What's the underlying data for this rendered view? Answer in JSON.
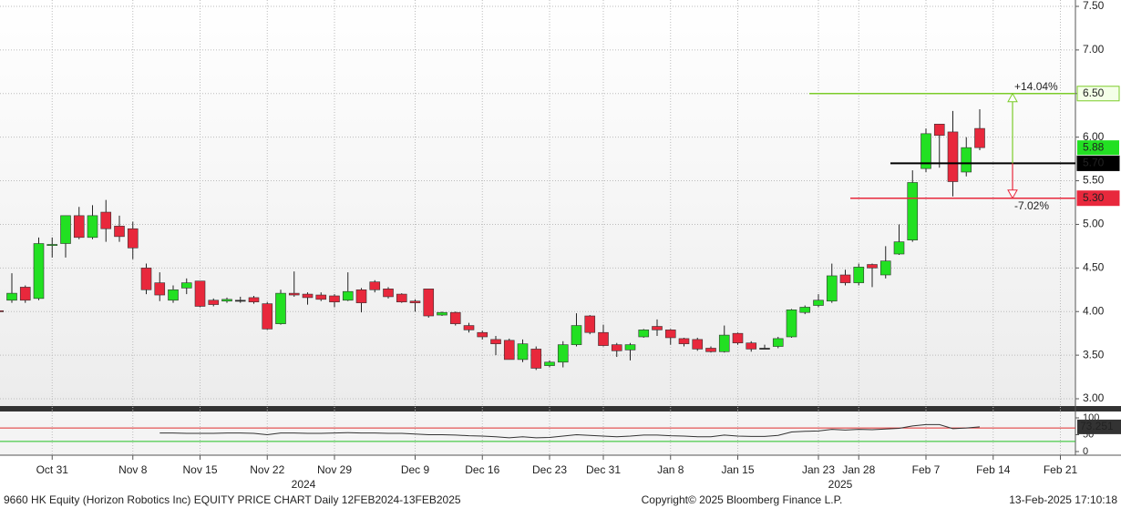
{
  "chart_data": [
    {
      "type": "candlestick",
      "categories": [
        null,
        null,
        null,
        null,
        "Oct 31",
        null,
        null,
        null,
        null,
        null,
        "Nov 8",
        null,
        null,
        null,
        null,
        "Nov 15",
        null,
        null,
        null,
        null,
        "Nov 22",
        null,
        null,
        null,
        null,
        "Nov 29",
        null,
        null,
        null,
        null,
        null,
        "Dec 9",
        null,
        null,
        null,
        null,
        "Dec 16",
        null,
        null,
        null,
        null,
        "Dec 23",
        null,
        null,
        null,
        "Dec 31",
        null,
        null,
        null,
        null,
        "Jan 8",
        null,
        null,
        null,
        null,
        "Jan 15",
        null,
        null,
        null,
        null,
        null,
        "Jan 23",
        null,
        null,
        "Jan 28",
        null,
        null,
        null,
        null,
        "Feb 7",
        null,
        null,
        null,
        null,
        "Feb 14",
        null,
        null,
        null,
        null,
        "Feb 21"
      ],
      "open": [
        4.01,
        4.13,
        4.28,
        4.15,
        4.76,
        4.78,
        5.1,
        4.85,
        5.14,
        4.98,
        4.95,
        4.5,
        4.33,
        4.13,
        4.27,
        4.35,
        4.13,
        4.12,
        4.13,
        4.16,
        4.09,
        3.86,
        4.21,
        4.2,
        4.19,
        4.18,
        4.13,
        4.25,
        4.34,
        4.26,
        4.2,
        4.12,
        4.26,
        3.96,
        3.99,
        3.84,
        3.76,
        3.68,
        3.67,
        3.45,
        3.57,
        3.38,
        3.42,
        3.62,
        3.95,
        3.76,
        3.62,
        3.56,
        3.71,
        3.83,
        3.79,
        3.69,
        3.68,
        3.58,
        3.54,
        3.75,
        3.64,
        3.58,
        3.6,
        3.71,
        3.99,
        4.07,
        4.12,
        4.42,
        4.33,
        4.54,
        4.42,
        4.66,
        4.82,
        5.64,
        6.15,
        6.06,
        5.6,
        6.1,
        null,
        null,
        null,
        null,
        null,
        null
      ],
      "high": [
        4.01,
        4.44,
        4.3,
        4.85,
        4.85,
        5.1,
        5.2,
        5.22,
        5.28,
        5.1,
        5.03,
        4.55,
        4.45,
        4.3,
        4.38,
        4.35,
        4.15,
        4.16,
        4.17,
        4.18,
        4.11,
        4.25,
        4.46,
        4.22,
        4.22,
        4.2,
        4.45,
        4.27,
        4.36,
        4.28,
        4.21,
        4.14,
        4.26,
        4.0,
        4.0,
        3.87,
        3.78,
        3.72,
        3.69,
        3.68,
        3.6,
        3.44,
        3.66,
        3.98,
        3.96,
        3.85,
        3.64,
        3.64,
        3.8,
        3.91,
        3.8,
        3.7,
        3.7,
        3.6,
        3.84,
        3.76,
        3.66,
        3.62,
        3.71,
        4.03,
        4.07,
        4.2,
        4.55,
        4.48,
        4.55,
        4.55,
        4.75,
        5.0,
        5.62,
        6.1,
        6.15,
        6.3,
        6.0,
        6.32,
        null,
        null,
        null,
        null,
        null,
        null
      ],
      "low": [
        3.99,
        4.1,
        4.1,
        4.13,
        4.62,
        4.62,
        4.83,
        4.83,
        4.8,
        4.8,
        4.6,
        4.2,
        4.12,
        4.1,
        4.2,
        4.05,
        4.06,
        4.1,
        4.1,
        4.09,
        3.79,
        3.85,
        4.17,
        4.08,
        4.12,
        4.05,
        4.12,
        3.99,
        4.22,
        4.15,
        4.1,
        4.0,
        3.93,
        3.95,
        3.84,
        3.76,
        3.68,
        3.5,
        3.45,
        3.42,
        3.33,
        3.36,
        3.36,
        3.6,
        3.74,
        3.6,
        3.48,
        3.44,
        3.7,
        3.72,
        3.62,
        3.6,
        3.55,
        3.53,
        3.53,
        3.62,
        3.54,
        3.57,
        3.58,
        3.7,
        3.97,
        4.05,
        4.1,
        4.3,
        4.3,
        4.28,
        4.38,
        4.65,
        4.8,
        5.6,
        5.65,
        5.32,
        5.55,
        5.85,
        null,
        null,
        null,
        null,
        null,
        null
      ],
      "close": [
        4.0,
        4.21,
        4.13,
        4.78,
        4.77,
        5.1,
        4.85,
        5.1,
        4.95,
        4.86,
        4.73,
        4.25,
        4.19,
        4.25,
        4.33,
        4.06,
        4.08,
        4.14,
        4.13,
        4.11,
        3.8,
        4.21,
        4.19,
        4.16,
        4.14,
        4.11,
        4.23,
        4.1,
        4.25,
        4.17,
        4.11,
        4.1,
        3.95,
        3.99,
        3.86,
        3.79,
        3.71,
        3.63,
        3.45,
        3.63,
        3.35,
        3.42,
        3.62,
        3.84,
        3.76,
        3.61,
        3.55,
        3.62,
        3.79,
        3.79,
        3.7,
        3.63,
        3.57,
        3.54,
        3.73,
        3.64,
        3.57,
        3.58,
        3.69,
        4.02,
        4.05,
        4.13,
        4.41,
        4.33,
        4.51,
        4.5,
        4.58,
        4.8,
        5.48,
        6.04,
        6.02,
        5.49,
        5.88,
        5.88,
        null,
        null,
        null,
        null,
        null,
        null
      ],
      "up_color": "#22e022",
      "down_color": "#e8283c",
      "ylim": [
        2.95,
        7.55
      ],
      "yticks": [
        {
          "value": 3,
          "label": "3.00"
        },
        {
          "value": 3.5,
          "label": "3.50"
        },
        {
          "value": 4,
          "label": "4.00"
        },
        {
          "value": 4.5,
          "label": "4.50"
        },
        {
          "value": 5,
          "label": "5.00"
        },
        {
          "value": 5.5,
          "label": "5.50"
        },
        {
          "value": 6,
          "label": "6.00"
        },
        {
          "value": 6.5,
          "label": "6.50"
        },
        {
          "value": 7,
          "label": "7.00"
        },
        {
          "value": 7.5,
          "label": "7.50"
        }
      ],
      "grid": true,
      "levels": [
        {
          "value": 6.5,
          "label": "6.50",
          "color": "#7ccc2a"
        },
        {
          "value": 5.7,
          "label": "5.70",
          "color": "#000000"
        },
        {
          "value": 5.3,
          "label": "5.30",
          "color": "#e8283c"
        }
      ],
      "changes": [
        {
          "value": 14.04,
          "label": "+14.04%",
          "color": "#7ccc2a"
        },
        {
          "value": -7.02,
          "label": "-7.02%",
          "color": "#e8283c"
        }
      ],
      "year_labels": [
        "2024",
        "2025"
      ]
    },
    {
      "type": "line",
      "color": "#333333",
      "values": [
        null,
        null,
        null,
        null,
        null,
        null,
        null,
        null,
        null,
        null,
        null,
        null,
        55,
        55,
        54,
        54,
        54,
        55,
        55,
        54,
        50,
        55,
        55,
        54,
        54,
        55,
        56,
        55,
        55,
        54,
        54,
        52,
        50,
        50,
        49,
        47,
        46,
        44,
        41,
        44,
        41,
        42,
        46,
        50,
        48,
        46,
        44,
        46,
        49,
        49,
        47,
        46,
        44,
        44,
        49,
        46,
        45,
        45,
        48,
        58,
        60,
        61,
        66,
        64,
        66,
        65,
        67,
        69,
        76,
        80,
        80,
        68,
        70,
        73.251,
        null,
        null,
        null,
        null,
        null,
        null
      ],
      "ylim": [
        -10,
        120
      ],
      "yticks": [
        0,
        50,
        100
      ],
      "ref_lines": [
        {
          "value": 70,
          "color": "#e03030"
        },
        {
          "value": 30,
          "color": "#22c022"
        }
      ]
    }
  ],
  "footer": {
    "left": "9660 HK Equity (Horizon Robotics Inc) EQUITY PRICE CHART  Daily 12FEB2024-13FEB2025",
    "center": "Copyright© 2025 Bloomberg Finance L.P.",
    "right": "13-Feb-2025 17:10:18"
  }
}
